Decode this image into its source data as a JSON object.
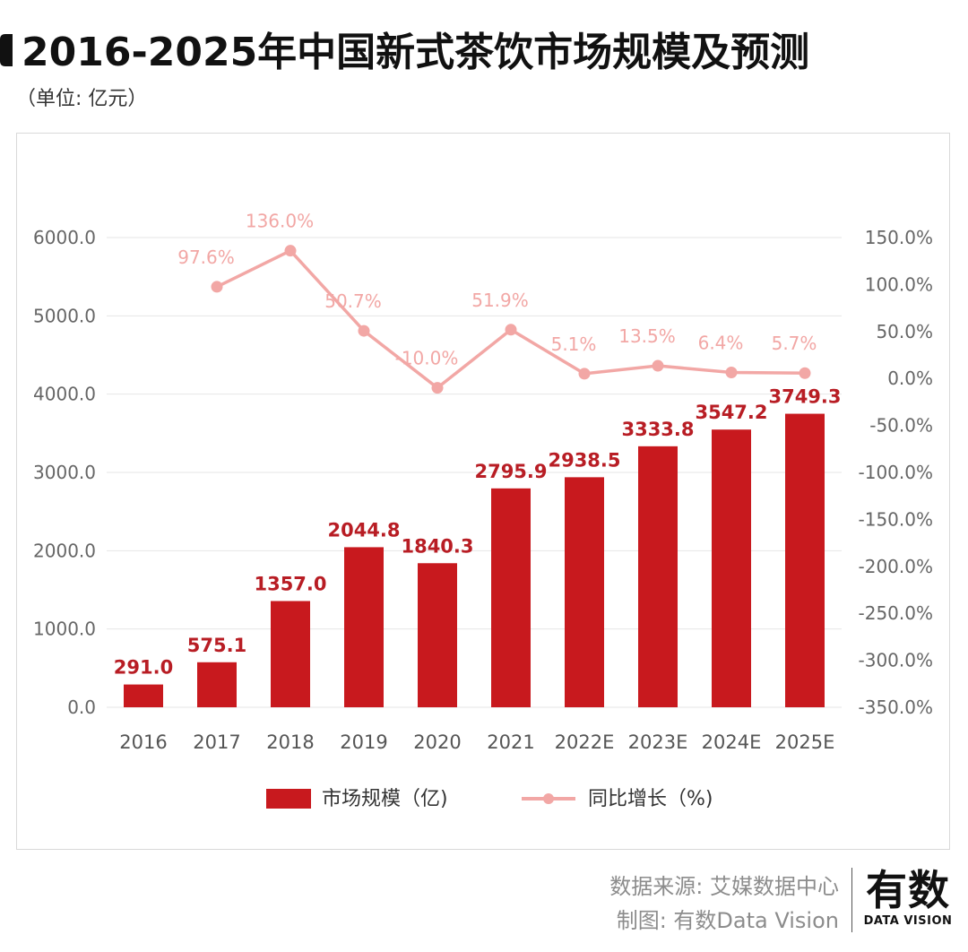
{
  "header": {
    "title": "2016-2025年中国新式茶饮市场规模及预测",
    "unit": "（单位: 亿元）"
  },
  "chart_data": {
    "type": "bar",
    "categories": [
      "2016",
      "2017",
      "2018",
      "2019",
      "2020",
      "2021",
      "2022E",
      "2023E",
      "2024E",
      "2025E"
    ],
    "series": [
      {
        "name": "市场规模（亿)",
        "type": "bar",
        "axis": "left",
        "values": [
          291.0,
          575.1,
          1357.0,
          2044.8,
          1840.3,
          2795.9,
          2938.5,
          3333.8,
          3547.2,
          3749.3
        ],
        "labels": [
          "291.0",
          "575.1",
          "1357.0",
          "2044.8",
          "1840.3",
          "2795.9",
          "2938.5",
          "3333.8",
          "3547.2",
          "3749.3"
        ]
      },
      {
        "name": "同比增长（%)",
        "type": "line",
        "axis": "right",
        "values": [
          null,
          97.6,
          136.0,
          50.7,
          -10.0,
          51.9,
          5.1,
          13.5,
          6.4,
          5.7
        ],
        "labels": [
          null,
          "97.6%",
          "136.0%",
          "50.7%",
          "-10.0%",
          "51.9%",
          "5.1%",
          "13.5%",
          "6.4%",
          "5.7%"
        ]
      }
    ],
    "y_left": {
      "ylim": [
        0,
        6000
      ],
      "ticks": [
        "0.0",
        "1000.0",
        "2000.0",
        "3000.0",
        "4000.0",
        "5000.0",
        "6000.0"
      ]
    },
    "y_right": {
      "ylim": [
        -350,
        150
      ],
      "ticks": [
        "-350.0%",
        "-300.0%",
        "-250.0%",
        "-200.0%",
        "-150.0%",
        "-100.0%",
        "-50.0%",
        "0.0%",
        "50.0%",
        "100.0%",
        "150.0%"
      ]
    },
    "legend_position": "bottom",
    "grid": "horizontal",
    "colors": {
      "bar": "#c8191e",
      "line": "#f2a7a5",
      "bar_label": "#b81d24",
      "line_label": "#f2a7a5"
    }
  },
  "footer": {
    "source": "数据来源: 艾媒数据中心",
    "credit": "制图: 有数Data Vision"
  },
  "logo": {
    "cn": "有数",
    "en": "DATA VISION"
  }
}
